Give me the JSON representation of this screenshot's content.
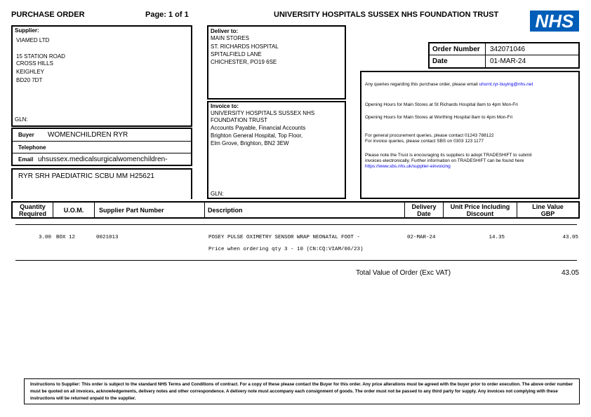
{
  "header": {
    "title": "PURCHASE ORDER",
    "page": "Page: 1 of 1",
    "trust": "UNIVERSITY HOSPITALS SUSSEX NHS FOUNDATION TRUST",
    "logo_text": "NHS",
    "logo_color": "#005EB8"
  },
  "supplier": {
    "label": "Supplier:",
    "lines": [
      "VIAMED LTD",
      "15 STATION ROAD",
      "CROSS HILLS",
      "KEIGHLEY",
      "BD20 7DT"
    ],
    "gln": "GLN:"
  },
  "buyer": {
    "buyer_label": "Buyer",
    "buyer_value": "WOMENCHILDREN RYR",
    "telephone_label": "Telephone",
    "email_label": "Email",
    "email_value": "uhsussex.medicalsurgicalwomenchildren-"
  },
  "cost_centre": "RYR SRH PAEDIATRIC SCBU MM H25621",
  "deliver": {
    "label": "Deliver to:",
    "lines": [
      "MAIN STORES",
      "ST. RICHARDS HOSPITAL",
      "SPITALFIELD LANE",
      "CHICHESTER, PO19 6SE"
    ]
  },
  "invoice": {
    "label": "Invoice to:",
    "lines": [
      "UNIVERSITY HOSPITALS SUSSEX NHS",
      "FOUNDATION TRUST",
      "Accounts Payable, Financial Accounts",
      "Brighton General Hospital, Top Floor,",
      "Elm Grove, Brighton, BN2 3EW"
    ],
    "gln": "GLN:"
  },
  "order": {
    "number_label": "Order Number",
    "number": "342071046",
    "date_label": "Date",
    "date": "01-MAR-24"
  },
  "info": {
    "queries": "Any queries regarding this purchase order, please email",
    "queries_email": "uhsrnt.ryr-buying@nhs.net",
    "hours_sr": "Opening Hours for Main Stores at St Richards Hospital 8am to 4pm Mon-Fri",
    "hours_w": "Opening Hours for Main Stores at Worthing Hospital 8am to 4pm Mon-Fri",
    "procurement": "For general procurement queries, please contact 01243 788122",
    "invoice_q": "For invoice queries, please contact SBS on 0303 123 1177",
    "tradeshift1": "Please note the Trust is encouraging its suppliers to adopt TRADESHIFT to submit",
    "tradeshift2": "invoices electronically. Further information on TRADESHIFT can be found here",
    "tradeshift_link": "https://www.sbs.nhs.uk/supplier-einvoicing"
  },
  "table": {
    "headers": [
      "Quantity Required",
      "U.O.M.",
      "Supplier Part Number",
      "Description",
      "Delivery Date",
      "Unit Price Including Discount",
      "Line Value GBP"
    ],
    "rows": [
      {
        "qty": "3.00",
        "uom": "BOX 12",
        "part": "0021013",
        "desc": "POSEY PULSE OXIMETRY SENSOR WRAP NEONATAL FOOT -",
        "desc2": "Price when ordering qty 3 - 10 (CN:CQ:VIAM/06/23)",
        "date": "02-MAR-24",
        "unit": "14.35",
        "value": "43.05"
      }
    ]
  },
  "total": {
    "label": "Total Value of Order (Exc VAT)",
    "value": "43.05"
  },
  "footer": {
    "instructions": "Instructions to Supplier: This order is subject to the standard NHS Terms and Conditions of contract. For a copy of these please contact the Buyer for this order. Any price alterations must be agreed with the buyer prior to order execution. The above order number must be quoted on all invoices, acknowledgements, delivery notes and other correspondence. A delivery note must accompany each consignment of goods. The order must not be passed to any third party for supply. Any invoices not complying with these instructions will be returned unpaid to the supplier."
  }
}
